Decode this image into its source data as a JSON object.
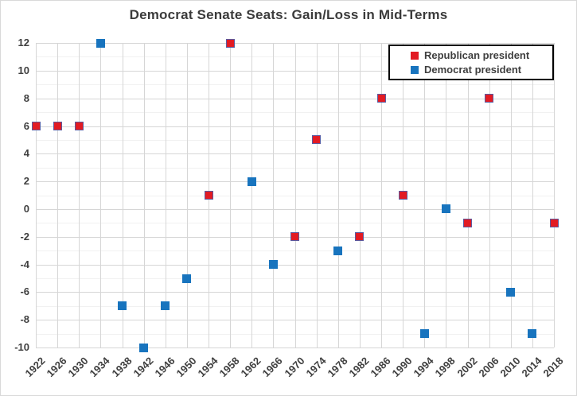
{
  "chart_data": {
    "type": "scatter",
    "title": "Democrat Senate Seats: Gain/Loss in Mid-Terms",
    "xlabel": "",
    "ylabel": "",
    "categories": [
      1922,
      1926,
      1930,
      1934,
      1938,
      1942,
      1946,
      1950,
      1954,
      1958,
      1962,
      1966,
      1970,
      1974,
      1978,
      1982,
      1986,
      1990,
      1994,
      1998,
      2002,
      2006,
      2010,
      2014,
      2018
    ],
    "series": [
      {
        "name": "Republican president",
        "color": "#E21B23",
        "marker_border": "#5B5BA0",
        "points": [
          [
            1922,
            6
          ],
          [
            1926,
            6
          ],
          [
            1930,
            6
          ],
          [
            1954,
            1
          ],
          [
            1958,
            12
          ],
          [
            1970,
            -2
          ],
          [
            1974,
            5
          ],
          [
            1982,
            -2
          ],
          [
            1986,
            8
          ],
          [
            1990,
            1
          ],
          [
            2002,
            -1
          ],
          [
            2006,
            8
          ],
          [
            2018,
            -1
          ]
        ]
      },
      {
        "name": "Democrat president",
        "color": "#1874BE",
        "marker_border": "#1874BE",
        "points": [
          [
            1934,
            12
          ],
          [
            1938,
            -7
          ],
          [
            1942,
            -10
          ],
          [
            1946,
            -7
          ],
          [
            1950,
            -5
          ],
          [
            1962,
            2
          ],
          [
            1966,
            -4
          ],
          [
            1978,
            -3
          ],
          [
            1994,
            -9
          ],
          [
            1998,
            0
          ],
          [
            2010,
            -6
          ],
          [
            2014,
            -9
          ]
        ]
      }
    ],
    "ylim": [
      -10,
      12
    ],
    "ytick_step": 2,
    "y_minor_step": 1,
    "xtick_step_years": 4,
    "marker": "square",
    "grid": "major horizontal every 2, minor horizontal every 1, vertical per category",
    "legend_position": "top-right"
  },
  "colors": {
    "title_text": "#3B3B3B",
    "axis_text": "#3F3F3F",
    "grid_major": "#D6D6D6",
    "grid_minor": "#F1F1F1",
    "chart_border": "#D9D9D9",
    "legend_border": "#000000",
    "background": "#FFFFFF"
  }
}
